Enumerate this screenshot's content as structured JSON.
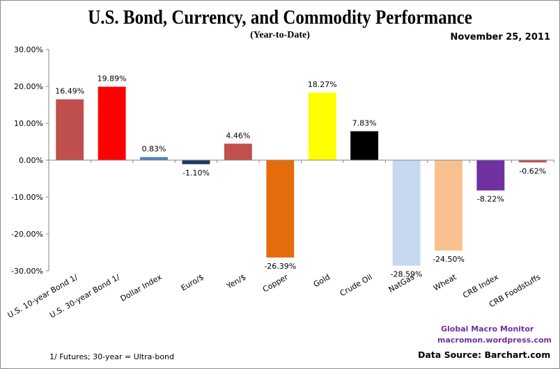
{
  "header": {
    "title": "U.S. Bond, Currency, and Commodity Performance",
    "subtitle": "(Year-to-Date)",
    "date": "November 25, 2011"
  },
  "footer": {
    "footnote": "1/  Futures; 30-year = Ultra-bond",
    "credit_name": "Global Macro Monitor",
    "credit_url": "macromon.wordpress.com",
    "source": "Data Source:  Barchart.com"
  },
  "chart_data": {
    "type": "bar",
    "title": "U.S. Bond, Currency, and Commodity Performance",
    "subtitle": "(Year-to-Date)",
    "xlabel": "",
    "ylabel": "",
    "ylim": [
      -30,
      30
    ],
    "yticks": [
      30,
      20,
      10,
      0,
      -10,
      -20,
      -30
    ],
    "ytick_labels": [
      "30.00%",
      "20.00%",
      "10.00%",
      "0.00%",
      "-10.00%",
      "-20.00%",
      "-30.00%"
    ],
    "grid": false,
    "legend": "none",
    "categories": [
      "U.S. 10-year Bond 1/",
      "U.S. 30-year Bond 1/",
      "Dollar Index",
      "Euro/$",
      "Yen/$",
      "Copper",
      "Gold",
      "Crude Oil",
      "NatGas",
      "Wheat",
      "CRB Index",
      "CRB Foodstuffs"
    ],
    "values": [
      16.49,
      19.89,
      0.83,
      -1.1,
      4.46,
      -26.39,
      18.27,
      7.83,
      -28.59,
      -24.5,
      -8.22,
      -0.62
    ],
    "data_labels": [
      "16.49%",
      "19.89%",
      "0.83%",
      "-1.10%",
      "4.46%",
      "-26.39%",
      "18.27%",
      "7.83%",
      "-28.59%",
      "-24.50%",
      "-8.22%",
      "-0.62%"
    ],
    "colors": [
      "#c0504d",
      "#ff0000",
      "#4f81bd",
      "#1f3864",
      "#c0504d",
      "#e46c0a",
      "#ffff00",
      "#000000",
      "#c6d9f1",
      "#fac090",
      "#7030a0",
      "#c0504d"
    ]
  }
}
